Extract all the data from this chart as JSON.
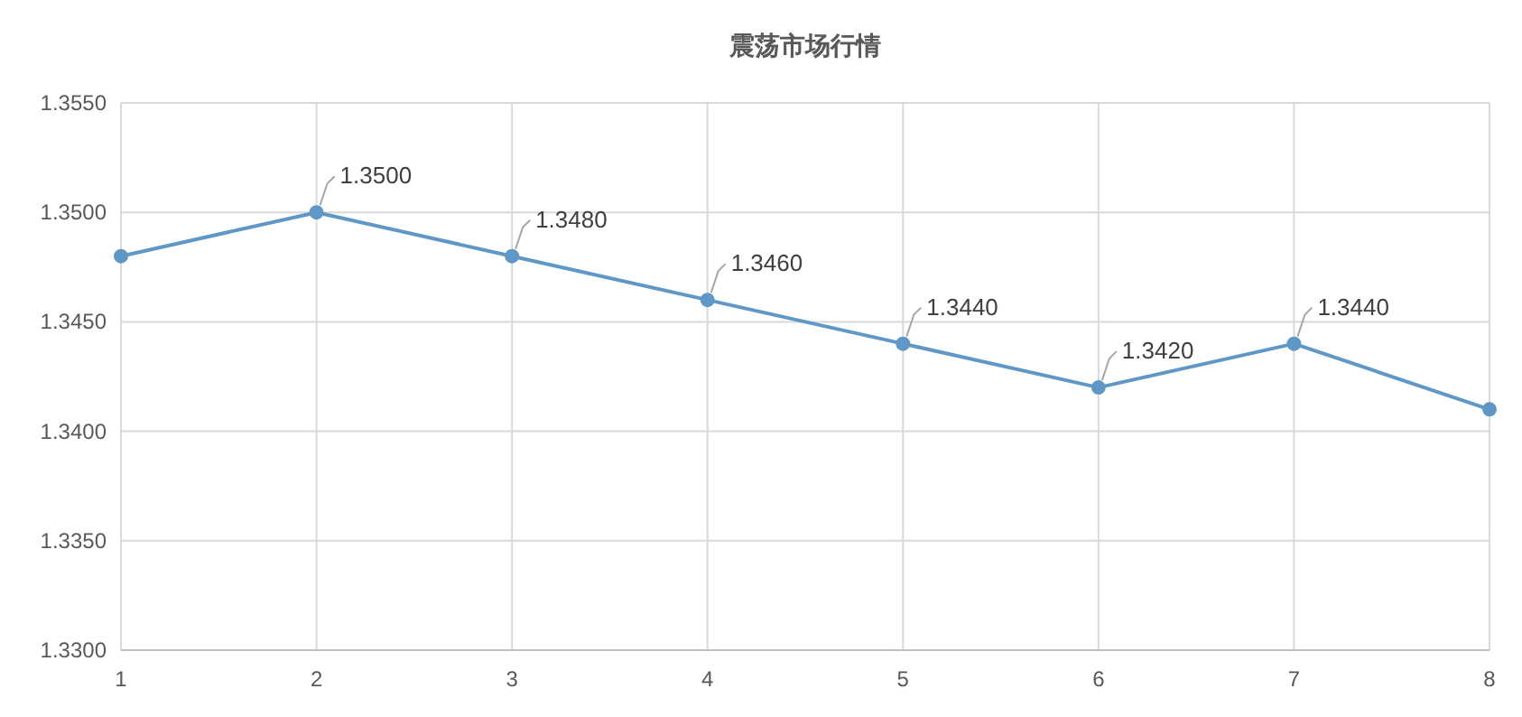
{
  "chart_data": {
    "type": "line",
    "title": "震荡市场行情",
    "x": [
      1,
      2,
      3,
      4,
      5,
      6,
      7,
      8
    ],
    "series": [
      {
        "color": "#5f98c6",
        "values": [
          1.348,
          1.35,
          1.348,
          1.346,
          1.344,
          1.342,
          1.344,
          1.341
        ],
        "value_labels": [
          null,
          "1.3500",
          "1.3480",
          "1.3460",
          "1.3440",
          "1.3420",
          "1.3440",
          null
        ]
      }
    ],
    "xlim": [
      1,
      8
    ],
    "xticks": [
      1,
      2,
      3,
      4,
      5,
      6,
      7,
      8
    ],
    "ylim": [
      1.33,
      1.355
    ],
    "yticks": [
      {
        "value": 1.33,
        "label": "1.3300"
      },
      {
        "value": 1.335,
        "label": "1.3350"
      },
      {
        "value": 1.34,
        "label": "1.3400"
      },
      {
        "value": 1.345,
        "label": "1.3450"
      },
      {
        "value": 1.35,
        "label": "1.3500"
      },
      {
        "value": 1.355,
        "label": "1.3550"
      }
    ],
    "grid": true,
    "marker": "circle",
    "line_style": "solid"
  }
}
